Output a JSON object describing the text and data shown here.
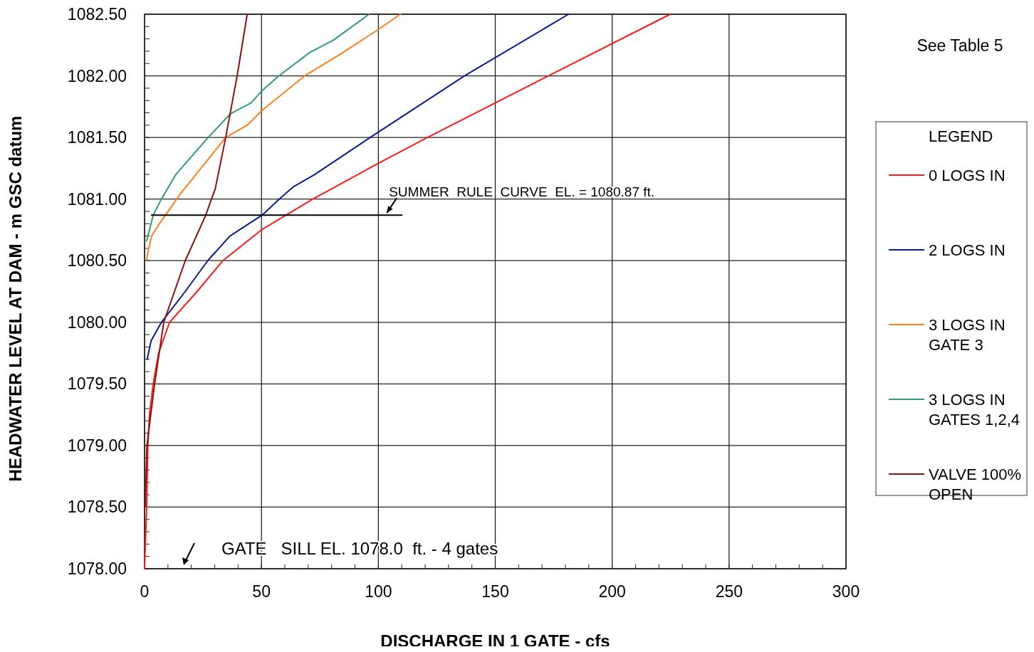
{
  "chart_data": {
    "type": "line",
    "xlabel": "DISCHARGE IN 1 GATE - cfs",
    "ylabel": "HEADWATER LEVEL AT DAM - m GSC datum",
    "legend_title": "LEGEND",
    "legend": "right",
    "grid": true,
    "line_style": "solid",
    "xlim": [
      0,
      300
    ],
    "ylim": [
      1078,
      1082.5
    ],
    "xticks": [
      0,
      {
        "value": 10,
        "label": null
      },
      {
        "value": 20,
        "label": null
      },
      {
        "value": 30,
        "label": null
      },
      {
        "value": 40,
        "label": null
      },
      50,
      {
        "value": 60,
        "label": null
      },
      {
        "value": 70,
        "label": null
      },
      {
        "value": 80,
        "label": null
      },
      {
        "value": 90,
        "label": null
      },
      100,
      {
        "value": 110,
        "label": null
      },
      {
        "value": 120,
        "label": null
      },
      {
        "value": 130,
        "label": null
      },
      {
        "value": 140,
        "label": null
      },
      150,
      {
        "value": 160,
        "label": null
      },
      {
        "value": 170,
        "label": null
      },
      {
        "value": 180,
        "label": null
      },
      {
        "value": 190,
        "label": null
      },
      200,
      {
        "value": 210,
        "label": null
      },
      {
        "value": 220,
        "label": null
      },
      {
        "value": 230,
        "label": null
      },
      {
        "value": 240,
        "label": null
      },
      250,
      {
        "value": 260,
        "label": null
      },
      {
        "value": 270,
        "label": null
      },
      {
        "value": 280,
        "label": null
      },
      {
        "value": 290,
        "label": null
      },
      300
    ],
    "yticks": [
      {
        "value": 1078,
        "label": "1078.00"
      },
      {
        "value": 1078.1,
        "label": null
      },
      {
        "value": 1078.2,
        "label": null
      },
      {
        "value": 1078.3,
        "label": null
      },
      {
        "value": 1078.4,
        "label": null
      },
      {
        "value": 1078.5,
        "label": "1078.50"
      },
      {
        "value": 1078.6,
        "label": null
      },
      {
        "value": 1078.7,
        "label": null
      },
      {
        "value": 1078.8,
        "label": null
      },
      {
        "value": 1078.9,
        "label": null
      },
      {
        "value": 1079,
        "label": "1079.00"
      },
      {
        "value": 1079.1,
        "label": null
      },
      {
        "value": 1079.2,
        "label": null
      },
      {
        "value": 1079.3,
        "label": null
      },
      {
        "value": 1079.4,
        "label": null
      },
      {
        "value": 1079.5,
        "label": "1079.50"
      },
      {
        "value": 1079.6,
        "label": null
      },
      {
        "value": 1079.7,
        "label": null
      },
      {
        "value": 1079.8,
        "label": null
      },
      {
        "value": 1079.9,
        "label": null
      },
      {
        "value": 1080,
        "label": "1080.00"
      },
      {
        "value": 1080.1,
        "label": null
      },
      {
        "value": 1080.2,
        "label": null
      },
      {
        "value": 1080.3,
        "label": null
      },
      {
        "value": 1080.4,
        "label": null
      },
      {
        "value": 1080.5,
        "label": "1080.50"
      },
      {
        "value": 1080.6,
        "label": null
      },
      {
        "value": 1080.7,
        "label": null
      },
      {
        "value": 1080.8,
        "label": null
      },
      {
        "value": 1080.9,
        "label": null
      },
      {
        "value": 1081,
        "label": "1081.00"
      },
      {
        "value": 1081.1,
        "label": null
      },
      {
        "value": 1081.2,
        "label": null
      },
      {
        "value": 1081.3,
        "label": null
      },
      {
        "value": 1081.4,
        "label": null
      },
      {
        "value": 1081.5,
        "label": "1081.50"
      },
      {
        "value": 1081.6,
        "label": null
      },
      {
        "value": 1081.7,
        "label": null
      },
      {
        "value": 1081.8,
        "label": null
      },
      {
        "value": 1081.9,
        "label": null
      },
      {
        "value": 1082,
        "label": "1082.00"
      },
      {
        "value": 1082.1,
        "label": null
      },
      {
        "value": 1082.2,
        "label": null
      },
      {
        "value": 1082.3,
        "label": null
      },
      {
        "value": 1082.4,
        "label": null
      },
      {
        "value": 1082.5,
        "label": "1082.50"
      }
    ],
    "series": [
      {
        "name": "0 LOGS IN",
        "color": "#ff1a1a",
        "x": [
          0,
          0.9,
          1.4,
          2.1,
          3.7,
          6,
          10.7,
          22.5,
          33.5,
          50,
          72,
          100,
          121,
          172.7,
          224.8
        ],
        "values": [
          1078,
          1078.5,
          1079,
          1079.25,
          1079.5,
          1079.75,
          1080,
          1080.25,
          1080.5,
          1080.75,
          1081,
          1081.29,
          1081.5,
          1082,
          1082.5
        ]
      },
      {
        "name": "2 LOGS IN",
        "color": "#0a1a96",
        "x": [
          1.1,
          2.8,
          7.2,
          17.4,
          27,
          36.5,
          50.3,
          57.6,
          63.7,
          72.8,
          96.5,
          136.8,
          181.3
        ],
        "values": [
          1079.7,
          1079.85,
          1080,
          1080.25,
          1080.5,
          1080.7,
          1080.87,
          1081,
          1081.1,
          1081.2,
          1081.5,
          1082,
          1082.5
        ]
      },
      {
        "name": "3 LOGS IN\nGATE 3",
        "color": "#ff7f1a",
        "x": [
          0.8,
          1.8,
          3,
          6.7,
          11.9,
          15.2,
          34.7,
          43.9,
          50.3,
          68.5,
          84.9,
          100.3,
          109.4
        ],
        "values": [
          1080.5,
          1080.6,
          1080.7,
          1080.81,
          1080.95,
          1081.04,
          1081.5,
          1081.6,
          1081.72,
          1082,
          1082.19,
          1082.38,
          1082.5
        ]
      },
      {
        "name": "3 LOGS IN\nGATES 1,2,4",
        "color": "#2e9e6e",
        "x": [
          0.9,
          3.7,
          7.2,
          13.4,
          27.2,
          36.6,
          45.5,
          50.3,
          57.5,
          70.7,
          80.8,
          96
        ],
        "values": [
          1080.66,
          1080.87,
          1081,
          1081.2,
          1081.5,
          1081.69,
          1081.78,
          1081.88,
          1082,
          1082.19,
          1082.29,
          1082.5
        ]
      },
      {
        "name": "VALVE 100%\nOPEN",
        "color": "#8b1010",
        "x": [
          0.3,
          1,
          4.3,
          8.2,
          12.8,
          17.4,
          26.2,
          28.6,
          30.2,
          34.7,
          39.6,
          43.9
        ],
        "values": [
          1078.5,
          1079,
          1079.5,
          1080,
          1080.25,
          1080.5,
          1080.87,
          1081,
          1081.08,
          1081.5,
          1082,
          1082.5
        ]
      },
      {
        "color": "#000000",
        "x": [
          3,
          110
        ],
        "values": [
          1080.87,
          1080.87
        ]
      }
    ],
    "annotations": [
      {
        "text": "SUMMER  RULE  CURVE  EL. = 1080.87 ft.",
        "x": 103,
        "y": 1080.87
      },
      "GATE   SILL EL. 1078.0  ft. - 4 gates",
      "See Table 5"
    ]
  }
}
